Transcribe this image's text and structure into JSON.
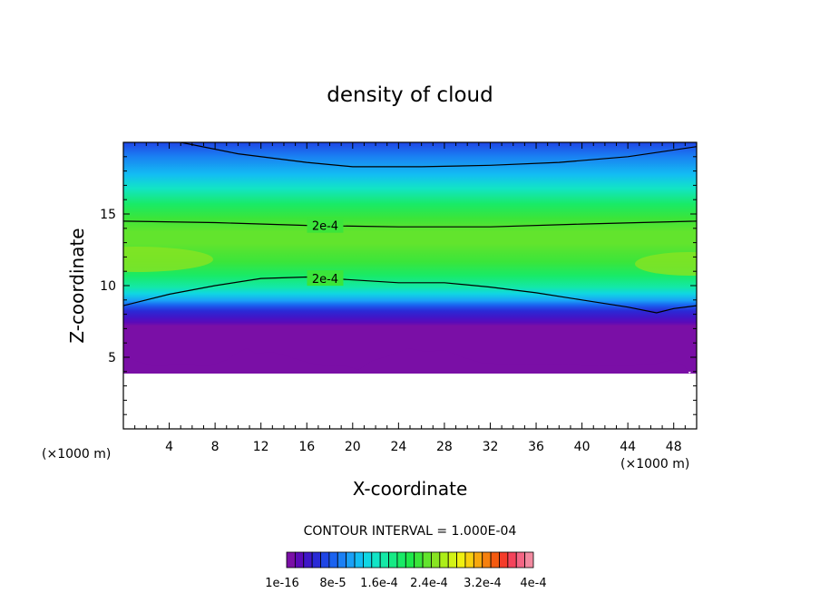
{
  "chart_data": {
    "type": "heatmap",
    "title": "density of cloud",
    "xlabel": "X-coordinate",
    "ylabel": "Z-coordinate",
    "x_unit": "(×1000 m)",
    "y_unit": "(×1000 m)",
    "xlim": [
      0,
      50
    ],
    "ylim": [
      0,
      20
    ],
    "x_ticks": [
      4,
      8,
      12,
      16,
      20,
      24,
      28,
      32,
      36,
      40,
      44,
      48
    ],
    "y_ticks": [
      5,
      10,
      15
    ],
    "contour_lines": [
      {
        "label": "2e-4",
        "points": [
          [
            0,
            14.5
          ],
          [
            8,
            14.4
          ],
          [
            16,
            14.2
          ],
          [
            24,
            14.1
          ],
          [
            32,
            14.1
          ],
          [
            40,
            14.3
          ],
          [
            50,
            14.5
          ]
        ],
        "label_at": [
          17.6,
          14.2
        ]
      },
      {
        "label": "2e-4",
        "points": [
          [
            0,
            8.6
          ],
          [
            4,
            9.4
          ],
          [
            8,
            10.0
          ],
          [
            12,
            10.5
          ],
          [
            16,
            10.6
          ],
          [
            20,
            10.4
          ],
          [
            24,
            10.2
          ],
          [
            28,
            10.2
          ],
          [
            32,
            9.9
          ],
          [
            36,
            9.5
          ],
          [
            40,
            9.0
          ],
          [
            44,
            8.5
          ],
          [
            46.5,
            8.1
          ],
          [
            48,
            8.4
          ],
          [
            50,
            8.6
          ]
        ],
        "label_at": [
          17.6,
          10.5
        ]
      },
      {
        "label": "",
        "points": [
          [
            5,
            20
          ],
          [
            10,
            19.2
          ],
          [
            16,
            18.6
          ],
          [
            20,
            18.3
          ],
          [
            26,
            18.3
          ],
          [
            32,
            18.4
          ],
          [
            38,
            18.6
          ],
          [
            44,
            19.0
          ],
          [
            50,
            19.7
          ]
        ]
      }
    ],
    "contour_interval": "CONTOUR INTERVAL = 1.000E-04",
    "colorbar": {
      "colors": [
        "#7a0fa6",
        "#5b0ab8",
        "#3f17c8",
        "#2a2ad6",
        "#1f45e5",
        "#1a62f0",
        "#1b80f5",
        "#1aa0f6",
        "#13bdf3",
        "#10d6e3",
        "#12e4c6",
        "#14e8a6",
        "#16ea85",
        "#19ea66",
        "#1ee84a",
        "#3be53a",
        "#62e42d",
        "#88e422",
        "#acee19",
        "#d2f216",
        "#f0f011",
        "#f8d00f",
        "#f8a80e",
        "#f6800e",
        "#f45a10",
        "#f43c2a",
        "#f4435b",
        "#f46584",
        "#f28aa0"
      ],
      "labels": [
        "1e-16",
        "8e-5",
        "1.6e-4",
        "2.4e-4",
        "3.2e-4",
        "4e-4"
      ]
    }
  }
}
